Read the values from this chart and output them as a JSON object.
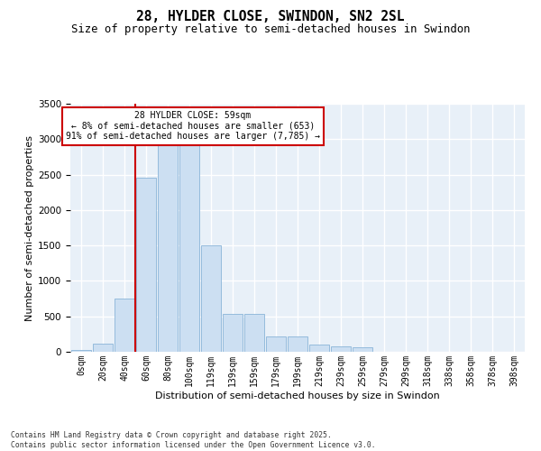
{
  "title1": "28, HYLDER CLOSE, SWINDON, SN2 2SL",
  "title2": "Size of property relative to semi-detached houses in Swindon",
  "xlabel": "Distribution of semi-detached houses by size in Swindon",
  "ylabel": "Number of semi-detached properties",
  "footnote": "Contains HM Land Registry data © Crown copyright and database right 2025.\nContains public sector information licensed under the Open Government Licence v3.0.",
  "annotation_line0": "28 HYLDER CLOSE: 59sqm",
  "annotation_line1": "← 8% of semi-detached houses are smaller (653)",
  "annotation_line2": "91% of semi-detached houses are larger (7,785) →",
  "bar_labels": [
    "0sqm",
    "20sqm",
    "40sqm",
    "60sqm",
    "80sqm",
    "100sqm",
    "119sqm",
    "139sqm",
    "159sqm",
    "179sqm",
    "199sqm",
    "219sqm",
    "239sqm",
    "259sqm",
    "279sqm",
    "299sqm",
    "318sqm",
    "338sqm",
    "358sqm",
    "378sqm",
    "398sqm"
  ],
  "bar_values": [
    30,
    120,
    750,
    2450,
    3000,
    2950,
    1500,
    530,
    530,
    220,
    220,
    100,
    80,
    60,
    0,
    0,
    0,
    0,
    0,
    0,
    0
  ],
  "bar_color": "#ccdff2",
  "bar_edge_color": "#8ab4d8",
  "vline_color": "#cc0000",
  "vline_position": 2.5,
  "ylim_max": 3500,
  "yticks": [
    0,
    500,
    1000,
    1500,
    2000,
    2500,
    3000,
    3500
  ],
  "bg_color": "#e8f0f8",
  "grid_color": "#ffffff",
  "ann_box_color": "#cc0000"
}
